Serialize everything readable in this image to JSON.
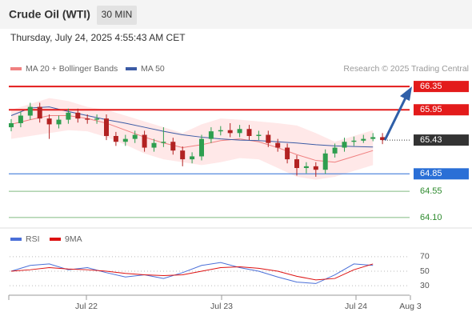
{
  "header": {
    "title": "Crude Oil (WTI)",
    "timeframe": "30 MIN",
    "datetime": "Thursday, July 24, 2025 4:55:43 AM CET"
  },
  "chart_data": [
    {
      "type": "candlestick",
      "credit": "Research © 2025 Trading Central",
      "ylim": [
        63.92,
        66.53
      ],
      "up_color": "#2e9e4f",
      "down_color": "#b22222",
      "open": [
        65.65,
        65.72,
        65.85,
        66.0,
        65.8,
        65.7,
        65.78,
        65.9,
        65.8,
        65.78,
        65.8,
        65.5,
        65.4,
        65.45,
        65.52,
        65.3,
        65.38,
        65.4,
        65.25,
        65.1,
        65.15,
        65.45,
        65.58,
        65.6,
        65.55,
        65.62,
        65.5,
        65.52,
        65.38,
        65.3,
        65.1,
        64.95,
        64.98,
        64.92,
        65.2,
        65.3,
        65.4,
        65.42,
        65.45,
        65.48
      ],
      "high": [
        65.79,
        65.92,
        66.07,
        66.07,
        65.87,
        65.85,
        65.97,
        65.97,
        65.87,
        65.87,
        65.87,
        65.57,
        65.52,
        65.59,
        65.59,
        65.45,
        65.65,
        65.47,
        65.32,
        65.22,
        65.52,
        65.65,
        65.67,
        65.72,
        65.69,
        65.69,
        65.59,
        65.59,
        65.45,
        65.37,
        65.17,
        65.05,
        65.05,
        65.27,
        65.37,
        65.47,
        65.49,
        65.52,
        65.55,
        65.55
      ],
      "low": [
        65.58,
        65.65,
        65.78,
        65.73,
        65.45,
        65.63,
        65.71,
        65.73,
        65.71,
        65.71,
        65.43,
        65.33,
        65.33,
        65.38,
        65.23,
        65.23,
        65.31,
        65.18,
        64.98,
        65.03,
        65.08,
        65.38,
        65.51,
        65.48,
        65.48,
        65.43,
        65.43,
        65.31,
        65.23,
        65.03,
        64.82,
        64.86,
        64.8,
        64.85,
        65.13,
        65.23,
        65.33,
        65.38,
        65.41,
        65.36
      ],
      "close": [
        65.72,
        65.85,
        66.0,
        65.8,
        65.7,
        65.78,
        65.9,
        65.8,
        65.78,
        65.8,
        65.5,
        65.4,
        65.45,
        65.52,
        65.3,
        65.38,
        65.4,
        65.25,
        65.1,
        65.15,
        65.45,
        65.58,
        65.6,
        65.55,
        65.62,
        65.5,
        65.52,
        65.38,
        65.3,
        65.1,
        64.95,
        64.98,
        64.92,
        65.2,
        65.3,
        65.4,
        65.42,
        65.45,
        65.48,
        65.43
      ],
      "series": [
        {
          "name": "MA 20 + Bollinger Bands",
          "color": "#f08080",
          "band_color": "rgba(255,150,150,0.22)",
          "values": [
            65.7,
            65.78,
            65.85,
            65.85,
            65.8,
            65.72,
            65.6,
            65.48,
            65.38,
            65.3,
            65.35,
            65.42,
            65.45,
            65.4,
            65.3,
            65.18,
            65.08,
            65.05,
            65.15,
            65.25
          ],
          "upper": [
            65.95,
            66.05,
            66.15,
            66.1,
            66.0,
            65.95,
            65.85,
            65.75,
            65.65,
            65.55,
            65.7,
            65.8,
            65.78,
            65.75,
            65.72,
            65.68,
            65.55,
            65.4,
            65.5,
            65.6
          ],
          "lower": [
            65.45,
            65.5,
            65.55,
            65.6,
            65.58,
            65.48,
            65.35,
            65.2,
            65.1,
            65.05,
            65.0,
            65.05,
            65.12,
            65.1,
            64.95,
            64.8,
            64.75,
            64.8,
            64.9,
            65.0
          ]
        },
        {
          "name": "MA 50",
          "color": "#3b5ba5",
          "values": [
            65.85,
            65.98,
            66.0,
            65.92,
            65.85,
            65.78,
            65.72,
            65.65,
            65.58,
            65.52,
            65.48,
            65.45,
            65.43,
            65.42,
            65.4,
            65.38,
            65.35,
            65.33,
            65.32,
            65.31
          ]
        }
      ],
      "levels": [
        {
          "value": 66.35,
          "color": "#e31b1b",
          "box": true
        },
        {
          "value": 65.95,
          "color": "#e31b1b",
          "box": true
        },
        {
          "value": 65.43,
          "color": "#333333",
          "box": true,
          "dotted": true
        },
        {
          "value": 64.85,
          "color": "#2a6fd6",
          "box": true
        },
        {
          "value": 64.55,
          "color": "#2e8b2e",
          "box": false
        },
        {
          "value": 64.1,
          "label": "64.10",
          "color": "#2e8b2e",
          "box": false
        }
      ],
      "x_labels": [
        "Jul 22",
        "Jul 23",
        "Jul 24",
        "Aug 3"
      ]
    },
    {
      "type": "line",
      "ylim": [
        18,
        82
      ],
      "yticks": [
        30,
        50,
        70
      ],
      "series": [
        {
          "name": "RSI",
          "color": "#4a6fd8",
          "values": [
            50,
            58,
            60,
            52,
            55,
            48,
            42,
            45,
            40,
            48,
            58,
            62,
            55,
            50,
            42,
            35,
            33,
            45,
            60,
            58
          ]
        },
        {
          "name": "9MA",
          "color": "#dd1111",
          "values": [
            50,
            52,
            55,
            53,
            52,
            50,
            47,
            45,
            44,
            45,
            50,
            55,
            56,
            54,
            50,
            43,
            38,
            40,
            52,
            60
          ]
        }
      ]
    }
  ]
}
